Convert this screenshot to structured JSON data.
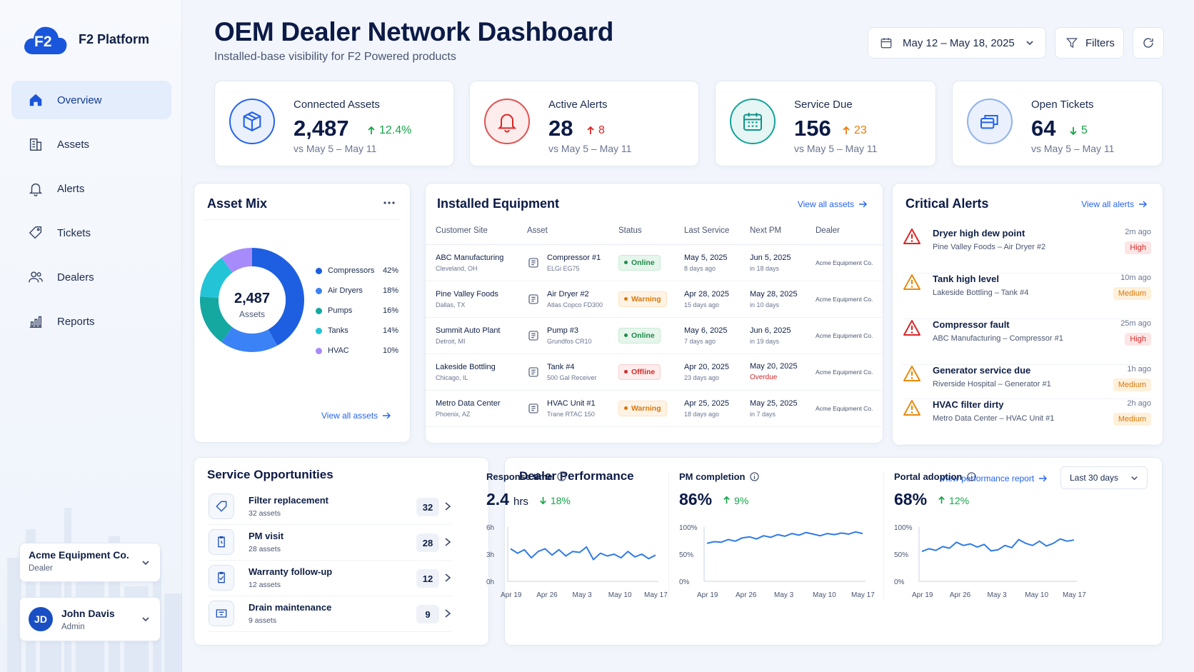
{
  "app": {
    "name": "F2 Platform",
    "logo_text": "F2"
  },
  "sidebar": {
    "items": [
      {
        "label": "Overview",
        "icon": "home-icon",
        "active": true
      },
      {
        "label": "Assets",
        "icon": "building-icon"
      },
      {
        "label": "Alerts",
        "icon": "bell-icon"
      },
      {
        "label": "Tickets",
        "icon": "ticket-icon"
      },
      {
        "label": "Dealers",
        "icon": "users-icon"
      },
      {
        "label": "Reports",
        "icon": "bar-chart-icon"
      }
    ],
    "dealer": {
      "name": "Acme Equipment Co.",
      "role": "Dealer"
    },
    "user": {
      "initials": "JD",
      "name": "John Davis",
      "role": "Admin"
    }
  },
  "header": {
    "title": "OEM Dealer Network Dashboard",
    "subtitle": "Installed-base visibility for F2 Powered products",
    "date_range": "May 12 – May 18, 2025",
    "filters_label": "Filters"
  },
  "kpis": [
    {
      "label": "Connected Assets",
      "value": "2,487",
      "delta": "12.4%",
      "direction": "up",
      "delta_color": "#16a34a",
      "compare": "vs May 5 – May 11",
      "icon": "box-icon",
      "color": "#2563eb"
    },
    {
      "label": "Active Alerts",
      "value": "28",
      "delta": "8",
      "direction": "up",
      "delta_color": "#dc2626",
      "compare": "vs May 5 – May 11",
      "icon": "bell-icon",
      "color": "#dc2626"
    },
    {
      "label": "Service Due",
      "value": "156",
      "delta": "23",
      "direction": "up",
      "delta_color": "#ea7c0c",
      "compare": "vs May 5 – May 11",
      "icon": "calendar-icon",
      "color": "#0d9488"
    },
    {
      "label": "Open Tickets",
      "value": "64",
      "delta": "5",
      "direction": "down",
      "delta_color": "#16a34a",
      "compare": "vs May 5 – May 11",
      "icon": "tickets-icon",
      "color": "#2563eb"
    }
  ],
  "asset_mix": {
    "title": "Asset Mix",
    "center_value": "2,487",
    "center_label": "Assets",
    "view_all": "View all assets",
    "chart_data": {
      "type": "pie",
      "categories": [
        "Compressors",
        "Air Dryers",
        "Pumps",
        "Tanks",
        "HVAC"
      ],
      "values": [
        42,
        18,
        16,
        14,
        10
      ],
      "labels": [
        "42%",
        "18%",
        "16%",
        "14%",
        "10%"
      ],
      "colors": [
        "#1d5fe0",
        "#3b82f6",
        "#14a8a0",
        "#22c4d6",
        "#a78bfa"
      ]
    }
  },
  "equipment": {
    "title": "Installed Equipment",
    "view_all": "View all assets",
    "columns": [
      "Customer Site",
      "Asset",
      "Status",
      "Last Service",
      "Next PM",
      "Dealer"
    ],
    "rows": [
      {
        "site": "ABC Manufacturing",
        "location": "Cleveland, OH",
        "asset": "Compressor #1",
        "model": "ELGi EG75",
        "status": "Online",
        "last": "May 5, 2025",
        "last_ago": "8 days ago",
        "next": "Jun 5, 2025",
        "next_in": "in 18 days",
        "dealer": "Acme Equipment Co."
      },
      {
        "site": "Pine Valley Foods",
        "location": "Dallas, TX",
        "asset": "Air Dryer #2",
        "model": "Atlas Copco FD300",
        "status": "Warning",
        "last": "Apr 28, 2025",
        "last_ago": "15 days ago",
        "next": "May 28, 2025",
        "next_in": "in 10 days",
        "dealer": "Acme Equipment Co."
      },
      {
        "site": "Summit Auto Plant",
        "location": "Detroit, MI",
        "asset": "Pump #3",
        "model": "Grundfos CR10",
        "status": "Online",
        "last": "May 6, 2025",
        "last_ago": "7 days ago",
        "next": "Jun 6, 2025",
        "next_in": "in 19 days",
        "dealer": "Acme Equipment Co."
      },
      {
        "site": "Lakeside Bottling",
        "location": "Chicago, IL",
        "asset": "Tank #4",
        "model": "500 Gal Receiver",
        "status": "Offline",
        "last": "Apr 20, 2025",
        "last_ago": "23 days ago",
        "next": "May 20, 2025",
        "next_in": "Overdue",
        "dealer": "Acme Equipment Co."
      },
      {
        "site": "Metro Data Center",
        "location": "Phoenix, AZ",
        "asset": "HVAC Unit #1",
        "model": "Trane RTAC 150",
        "status": "Warning",
        "last": "Apr 25, 2025",
        "last_ago": "18 days ago",
        "next": "May 25, 2025",
        "next_in": "in 7 days",
        "dealer": "Acme Equipment Co."
      }
    ]
  },
  "critical_alerts": {
    "title": "Critical Alerts",
    "view_all": "View all alerts",
    "items": [
      {
        "title": "Dryer high dew point",
        "sub": "Pine Valley Foods – Air Dryer #2",
        "time": "2m ago",
        "severity": "High"
      },
      {
        "title": "Tank high level",
        "sub": "Lakeside Bottling – Tank #4",
        "time": "10m ago",
        "severity": "Medium"
      },
      {
        "title": "Compressor fault",
        "sub": "ABC Manufacturing – Compressor #1",
        "time": "25m ago",
        "severity": "High"
      },
      {
        "title": "Generator service due",
        "sub": "Riverside Hospital – Generator #1",
        "time": "1h ago",
        "severity": "Medium"
      },
      {
        "title": "HVAC filter dirty",
        "sub": "Metro Data Center – HVAC Unit #1",
        "time": "2h ago",
        "severity": "Medium"
      }
    ]
  },
  "service_opportunities": {
    "title": "Service Opportunities",
    "items": [
      {
        "title": "Filter replacement",
        "sub": "32 assets",
        "count": "32",
        "icon": "tag-icon"
      },
      {
        "title": "PM visit",
        "sub": "28 assets",
        "count": "28",
        "icon": "clipboard-clock-icon"
      },
      {
        "title": "Warranty follow-up",
        "sub": "12 assets",
        "count": "12",
        "icon": "clipboard-check-icon"
      },
      {
        "title": "Drain maintenance",
        "sub": "9 assets",
        "count": "9",
        "icon": "drain-icon"
      }
    ]
  },
  "dealer_performance": {
    "title": "Dealer Performance",
    "report_link": "View performance report",
    "period": "Last 30 days",
    "metrics": [
      {
        "label": "Response time",
        "value": "2.4",
        "unit": "hrs",
        "delta": "18%",
        "direction": "down",
        "delta_color": "#16a34a"
      },
      {
        "label": "PM completion",
        "value": "86%",
        "unit": "",
        "delta": "9%",
        "direction": "up",
        "delta_color": "#16a34a"
      },
      {
        "label": "Portal adoption",
        "value": "68%",
        "unit": "",
        "delta": "12%",
        "direction": "up",
        "delta_color": "#16a34a"
      }
    ]
  },
  "chart_data": [
    {
      "type": "line",
      "ylabel": "",
      "yticks": [
        "6h",
        "3h",
        "0h"
      ],
      "ylim": [
        0,
        6
      ],
      "x_ticks": [
        "Apr 19",
        "Apr 26",
        "May 3",
        "May 10",
        "May 17"
      ],
      "series": [
        {
          "values": [
            3.6,
            3.1,
            3.5,
            2.6,
            3.3,
            3.6,
            2.9,
            3.5,
            2.8,
            3.3,
            3.2,
            3.8,
            2.4,
            3.1,
            2.8,
            3.0,
            2.6,
            3.3,
            2.7,
            3.0,
            2.5,
            2.9
          ]
        }
      ],
      "color": "#2f7be6"
    },
    {
      "type": "line",
      "ylabel": "",
      "yticks": [
        "100%",
        "50%",
        "0%"
      ],
      "ylim": [
        0,
        100
      ],
      "x_ticks": [
        "Apr 19",
        "Apr 26",
        "May 3",
        "May 10",
        "May 17"
      ],
      "series": [
        {
          "values": [
            70,
            73,
            72,
            77,
            74,
            80,
            82,
            78,
            84,
            81,
            86,
            83,
            88,
            85,
            90,
            87,
            84,
            88,
            86,
            89,
            87,
            91,
            88
          ]
        }
      ],
      "color": "#2f7be6"
    },
    {
      "type": "line",
      "ylabel": "",
      "yticks": [
        "100%",
        "50%",
        "0%"
      ],
      "ylim": [
        0,
        100
      ],
      "x_ticks": [
        "Apr 19",
        "Apr 26",
        "May 3",
        "May 10",
        "May 17"
      ],
      "series": [
        {
          "values": [
            55,
            60,
            57,
            64,
            61,
            72,
            66,
            69,
            63,
            68,
            56,
            58,
            66,
            62,
            77,
            70,
            66,
            74,
            65,
            70,
            78,
            74,
            76
          ]
        }
      ],
      "color": "#2f7be6"
    }
  ]
}
